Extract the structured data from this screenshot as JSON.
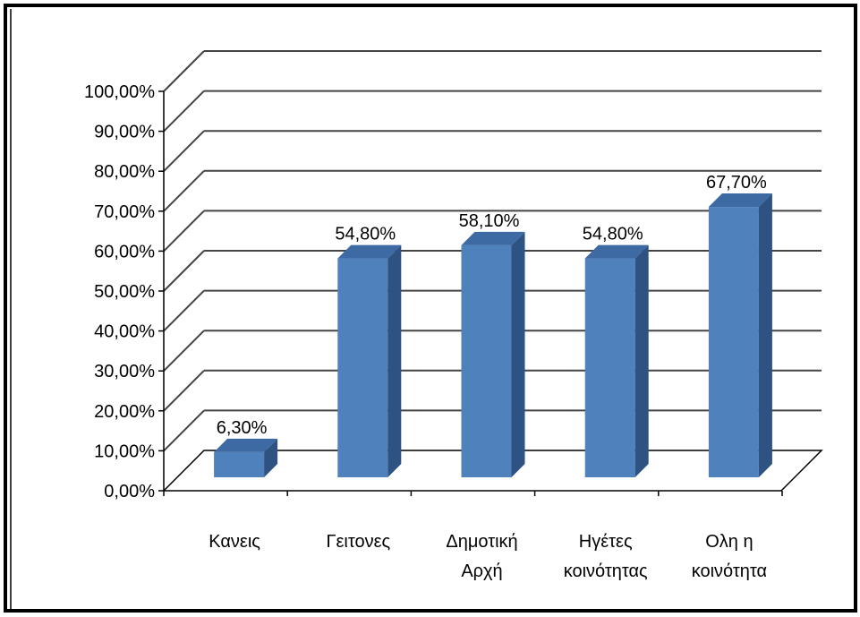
{
  "chart_data": {
    "type": "bar",
    "style": "3d-column",
    "categories": [
      [
        "Κανεις"
      ],
      [
        "Γειτονες"
      ],
      [
        "Δημοτική",
        "Αρχή"
      ],
      [
        "Ηγέτες",
        "κοινότητας"
      ],
      [
        "Ολη η",
        "κοινότητα"
      ]
    ],
    "values": [
      6.3,
      54.8,
      58.1,
      54.8,
      67.7
    ],
    "data_labels": [
      "6,30%",
      "54,80%",
      "58,10%",
      "54,80%",
      "67,70%"
    ],
    "y_ticks": [
      0,
      10,
      20,
      30,
      40,
      50,
      60,
      70,
      80,
      90,
      100
    ],
    "y_tick_labels": [
      "0,00%",
      "10,00%",
      "20,00%",
      "30,00%",
      "40,00%",
      "50,00%",
      "60,00%",
      "70,00%",
      "80,00%",
      "90,00%",
      "100,00%"
    ],
    "ylim": [
      0,
      100
    ],
    "grid": true,
    "legend": "none",
    "title": "",
    "xlabel": "",
    "ylabel": "",
    "colors": {
      "bar_front": "#4f81bd",
      "bar_side": "#2e5281",
      "bar_top": "#3d6aa3",
      "gridline": "#444444",
      "floor": "#000000",
      "frame": "#000000"
    }
  }
}
